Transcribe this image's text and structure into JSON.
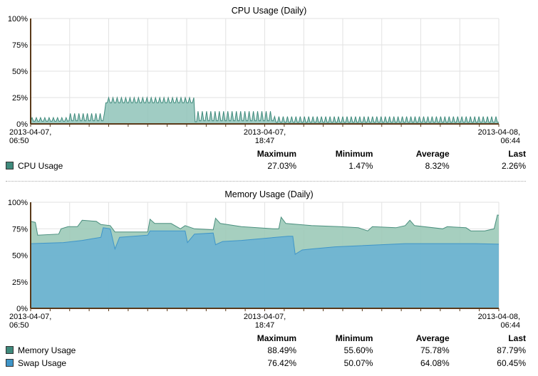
{
  "colors": {
    "cpu": "#8fc3b8",
    "cpu_line": "#3f8a7c",
    "memory": "#9ccab8",
    "memory_line": "#4a8f7e",
    "swap": "#6fb4d2",
    "swap_line": "#3f95c8",
    "axis": "#5a3a1a",
    "grid": "#e2e2e2"
  },
  "chart_data": [
    {
      "type": "area",
      "title": "CPU Usage (Daily)",
      "x_ticks": [
        {
          "line1": "2013-04-07,",
          "line2": "06:50"
        },
        {
          "line1": "2013-04-07,",
          "line2": "18:47"
        },
        {
          "line1": "2013-04-08,",
          "line2": "06:44"
        }
      ],
      "y_ticks": [
        "100%",
        "75%",
        "50%",
        "25%",
        "0%"
      ],
      "ylim": [
        0,
        100
      ],
      "series": [
        {
          "name": "CPU Usage",
          "color_key": "cpu",
          "segments": [
            {
              "from": 0.0,
              "to": 0.08,
              "base": 2.5,
              "peak": 6
            },
            {
              "from": 0.08,
              "to": 0.16,
              "base": 3,
              "peak": 10
            },
            {
              "from": 0.16,
              "to": 0.35,
              "base": 20,
              "peak": 25
            },
            {
              "from": 0.35,
              "to": 0.355,
              "base": 2,
              "peak": 27
            },
            {
              "from": 0.355,
              "to": 0.52,
              "base": 3,
              "peak": 12
            },
            {
              "from": 0.52,
              "to": 1.0,
              "base": 1.5,
              "peak": 7
            }
          ],
          "stats": {
            "max": "27.03%",
            "min": "1.47%",
            "avg": "8.32%",
            "last": "2.26%"
          }
        }
      ]
    },
    {
      "type": "area",
      "title": "Memory Usage (Daily)",
      "x_ticks": [
        {
          "line1": "2013-04-07,",
          "line2": "06:50"
        },
        {
          "line1": "2013-04-07,",
          "line2": "18:47"
        },
        {
          "line1": "2013-04-08,",
          "line2": "06:44"
        }
      ],
      "y_ticks": [
        "100%",
        "75%",
        "50%",
        "25%",
        "0%"
      ],
      "ylim": [
        0,
        100
      ],
      "series": [
        {
          "name": "Memory Usage",
          "color_key": "memory",
          "points": [
            [
              0.0,
              82
            ],
            [
              0.01,
              81
            ],
            [
              0.015,
              69
            ],
            [
              0.06,
              70
            ],
            [
              0.065,
              75
            ],
            [
              0.08,
              77
            ],
            [
              0.1,
              77
            ],
            [
              0.11,
              83
            ],
            [
              0.14,
              82
            ],
            [
              0.15,
              79
            ],
            [
              0.17,
              78
            ],
            [
              0.18,
              72
            ],
            [
              0.25,
              72
            ],
            [
              0.255,
              84
            ],
            [
              0.265,
              80
            ],
            [
              0.3,
              80
            ],
            [
              0.32,
              75
            ],
            [
              0.33,
              78
            ],
            [
              0.35,
              75
            ],
            [
              0.39,
              74
            ],
            [
              0.395,
              85
            ],
            [
              0.405,
              80
            ],
            [
              0.45,
              77
            ],
            [
              0.52,
              75
            ],
            [
              0.53,
              75
            ],
            [
              0.535,
              86
            ],
            [
              0.545,
              80
            ],
            [
              0.6,
              78
            ],
            [
              0.66,
              77
            ],
            [
              0.7,
              76
            ],
            [
              0.72,
              73
            ],
            [
              0.73,
              77
            ],
            [
              0.78,
              76
            ],
            [
              0.8,
              78
            ],
            [
              0.81,
              83
            ],
            [
              0.82,
              78
            ],
            [
              0.88,
              75
            ],
            [
              0.89,
              77
            ],
            [
              0.93,
              76
            ],
            [
              0.94,
              73
            ],
            [
              0.97,
              73
            ],
            [
              0.99,
              75
            ],
            [
              0.997,
              88
            ],
            [
              1.0,
              87.79
            ]
          ],
          "stats": {
            "max": "88.49%",
            "min": "55.60%",
            "avg": "75.78%",
            "last": "87.79%"
          }
        },
        {
          "name": "Swap Usage",
          "color_key": "swap",
          "points": [
            [
              0.0,
              61
            ],
            [
              0.07,
              62
            ],
            [
              0.11,
              64
            ],
            [
              0.15,
              67
            ],
            [
              0.155,
              76
            ],
            [
              0.17,
              75
            ],
            [
              0.18,
              56
            ],
            [
              0.19,
              67
            ],
            [
              0.25,
              69
            ],
            [
              0.255,
              73
            ],
            [
              0.33,
              73
            ],
            [
              0.335,
              62
            ],
            [
              0.35,
              70
            ],
            [
              0.39,
              71
            ],
            [
              0.395,
              60
            ],
            [
              0.41,
              63
            ],
            [
              0.45,
              64
            ],
            [
              0.55,
              68
            ],
            [
              0.56,
              68
            ],
            [
              0.565,
              51
            ],
            [
              0.58,
              55
            ],
            [
              0.6,
              56
            ],
            [
              0.65,
              58
            ],
            [
              0.75,
              60
            ],
            [
              0.8,
              61
            ],
            [
              0.85,
              61
            ],
            [
              0.95,
              61
            ],
            [
              1.0,
              60.45
            ]
          ],
          "stats": {
            "max": "76.42%",
            "min": "50.07%",
            "avg": "64.08%",
            "last": "60.45%"
          }
        }
      ]
    }
  ],
  "stats_headers": {
    "max": "Maximum",
    "min": "Minimum",
    "avg": "Average",
    "last": "Last"
  }
}
